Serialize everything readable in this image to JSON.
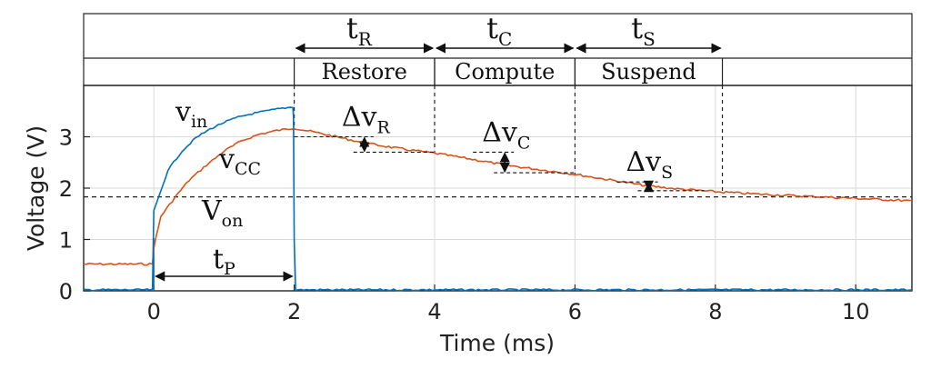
{
  "chart_data": {
    "type": "line",
    "xlabel": "Time (ms)",
    "ylabel": "Voltage (V)",
    "xlim": [
      -1,
      10.8
    ],
    "ylim": [
      0,
      4
    ],
    "x_ticks": [
      0,
      2,
      4,
      6,
      8,
      10
    ],
    "y_ticks": [
      0,
      1,
      2,
      3
    ],
    "grid": true,
    "series": [
      {
        "name": "v_in",
        "color": "#0072BD",
        "x": [
          -1,
          -0.02,
          0,
          0.2,
          0.4,
          0.6,
          0.8,
          1.0,
          1.2,
          1.4,
          1.6,
          1.8,
          1.98,
          1.99,
          2.0,
          2.02,
          10.8
        ],
        "y": [
          0.02,
          0.02,
          1.55,
          2.35,
          2.72,
          2.98,
          3.15,
          3.28,
          3.38,
          3.45,
          3.5,
          3.55,
          3.58,
          3.4,
          1.0,
          0.02,
          0.02
        ]
      },
      {
        "name": "v_CC",
        "color": "#D95319",
        "x": [
          -1,
          -0.02,
          0,
          0.1,
          0.3,
          0.5,
          0.75,
          1.0,
          1.25,
          1.5,
          1.75,
          2.0,
          2.5,
          3.0,
          3.5,
          4.0,
          4.5,
          5.0,
          5.5,
          6.0,
          6.5,
          7.0,
          7.5,
          8.0,
          8.5,
          9.0,
          9.5,
          10.0,
          10.5,
          10.8
        ],
        "y": [
          0.52,
          0.52,
          0.85,
          1.45,
          1.82,
          2.15,
          2.45,
          2.72,
          2.92,
          3.05,
          3.12,
          3.17,
          3.03,
          2.88,
          2.77,
          2.68,
          2.57,
          2.45,
          2.36,
          2.27,
          2.16,
          2.05,
          1.98,
          1.93,
          1.89,
          1.86,
          1.83,
          1.8,
          1.77,
          1.75
        ]
      }
    ],
    "reference_line": {
      "name": "V_on",
      "y": 1.83
    },
    "labels": {
      "v_in": {
        "main": "v",
        "sub": "in"
      },
      "v_cc": {
        "main": "v",
        "sub": "CC"
      },
      "v_on": {
        "main": "V",
        "sub": "on"
      },
      "t_p": {
        "main": "t",
        "sub": "P"
      }
    },
    "phases": [
      {
        "name": "Restore",
        "start": 2,
        "end": 4,
        "arrow_main": "t",
        "arrow_sub": "R",
        "delta_main": "Δv",
        "delta_sub": "R",
        "delta_x": 3.0,
        "delta_y_top": 3.0,
        "delta_y_bottom": 2.7
      },
      {
        "name": "Compute",
        "start": 4,
        "end": 6,
        "arrow_main": "t",
        "arrow_sub": "C",
        "delta_main": "Δv",
        "delta_sub": "C",
        "delta_x": 5.0,
        "delta_y_top": 2.7,
        "delta_y_bottom": 2.3
      },
      {
        "name": "Suspend",
        "start": 6,
        "end": 8.1,
        "arrow_main": "t",
        "arrow_sub": "S",
        "delta_main": "Δv",
        "delta_sub": "S",
        "delta_x": 7.05,
        "delta_y_top": 2.12,
        "delta_y_bottom": 1.95
      }
    ],
    "tp_span": [
      0,
      2
    ]
  }
}
